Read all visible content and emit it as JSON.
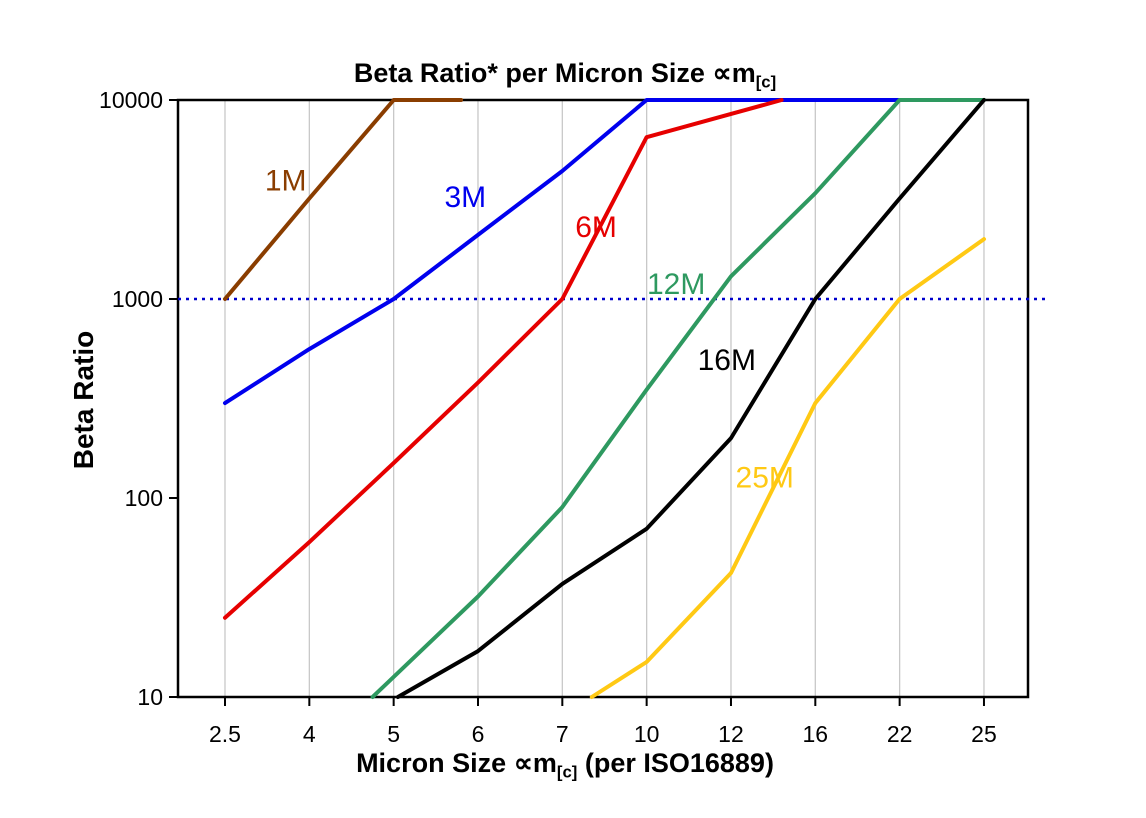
{
  "chart_data": {
    "type": "line",
    "title": {
      "text": "Beta Ratio* per Micron Size ∝m",
      "subscript": "[c]"
    },
    "xlabel": {
      "text": "Micron Size ∝m",
      "subscript": "[c]",
      "suffix": " (per ISO16889)"
    },
    "ylabel": "Beta Ratio",
    "x_categories": [
      "2.5",
      "4",
      "5",
      "6",
      "7",
      "10",
      "12",
      "16",
      "22",
      "25"
    ],
    "y_ticks": [
      10,
      100,
      1000,
      10000
    ],
    "y_scale": "log",
    "ylim": [
      10,
      10000
    ],
    "grid_vertical": true,
    "grid_color": "#c8c8c8",
    "reference_line": {
      "value": 1000,
      "color": "#0000cc",
      "style": "dotted"
    },
    "series": [
      {
        "name": "1M",
        "color": "#8a3d00",
        "label": {
          "xi": 0.72,
          "v": 3500
        },
        "points": [
          [
            0,
            1000
          ],
          [
            1,
            3200
          ],
          [
            2,
            10000
          ],
          [
            2.8,
            10000
          ]
        ]
      },
      {
        "name": "3M",
        "color": "#0000ee",
        "label": {
          "xi": 2.85,
          "v": 2900
        },
        "points": [
          [
            0,
            300
          ],
          [
            1,
            560
          ],
          [
            2,
            1000
          ],
          [
            3,
            2100
          ],
          [
            4,
            4400
          ],
          [
            5,
            10000
          ],
          [
            8,
            10000
          ]
        ]
      },
      {
        "name": "6M",
        "color": "#e60000",
        "label": {
          "xi": 4.4,
          "v": 2050
        },
        "points": [
          [
            0,
            25
          ],
          [
            1,
            60
          ],
          [
            2,
            150
          ],
          [
            3,
            380
          ],
          [
            4,
            1000
          ],
          [
            5,
            6500
          ],
          [
            6.6,
            10000
          ]
        ]
      },
      {
        "name": "12M",
        "color": "#2e9960",
        "label": {
          "xi": 5.35,
          "v": 1060
        },
        "points": [
          [
            1.75,
            10
          ],
          [
            3,
            32
          ],
          [
            4,
            90
          ],
          [
            5,
            350
          ],
          [
            6,
            1300
          ],
          [
            7,
            3400
          ],
          [
            8,
            10000
          ],
          [
            9,
            10000
          ]
        ]
      },
      {
        "name": "16M",
        "color": "#000000",
        "label": {
          "xi": 5.95,
          "v": 440
        },
        "points": [
          [
            2.05,
            10
          ],
          [
            3,
            17
          ],
          [
            4,
            37
          ],
          [
            5,
            70
          ],
          [
            6,
            200
          ],
          [
            7,
            1000
          ],
          [
            8,
            3200
          ],
          [
            9,
            10000
          ]
        ]
      },
      {
        "name": "25M",
        "color": "#ffc914",
        "label": {
          "xi": 6.4,
          "v": 113
        },
        "points": [
          [
            4.35,
            10
          ],
          [
            5,
            15
          ],
          [
            6,
            42
          ],
          [
            7,
            300
          ],
          [
            8,
            1000
          ],
          [
            9,
            2000
          ]
        ]
      }
    ]
  }
}
